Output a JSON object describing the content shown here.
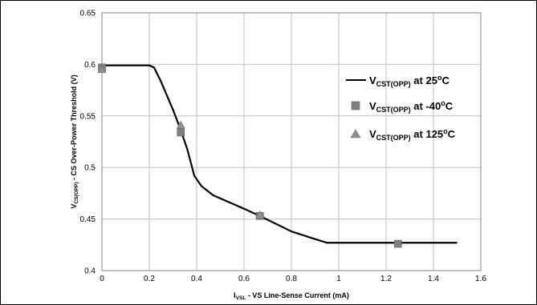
{
  "chart_data": {
    "type": "line",
    "x_axis": {
      "label_main": "I",
      "label_sub": "VSL",
      "label_rest": " - VS Line-Sense Current (mA)",
      "min": 0,
      "max": 1.6,
      "ticks": [
        "0",
        "0.2",
        "0.4",
        "0.6",
        "0.8",
        "1",
        "1.2",
        "1.4",
        "1.6"
      ]
    },
    "y_axis": {
      "label_main": "V",
      "label_sub": "CS(OPP)",
      "label_rest": " - CS Over-Power Threshold (V)",
      "min": 0.4,
      "max": 0.65,
      "ticks": [
        "0.4",
        "0.45",
        "0.5",
        "0.55",
        "0.6",
        "0.65"
      ]
    },
    "grid": true,
    "legend_position": "right",
    "series": [
      {
        "name_main": "V",
        "name_sub": "CST(OPP)",
        "name_rest": " at 25",
        "name_sup": "o",
        "name_end": "C",
        "marker": "line",
        "color": "#000000",
        "x": [
          0,
          0.1,
          0.2,
          0.22,
          0.25,
          0.3,
          0.33,
          0.36,
          0.39,
          0.42,
          0.47,
          0.55,
          0.6,
          0.667,
          0.72,
          0.8,
          0.88,
          0.95,
          1.0,
          1.25,
          1.5
        ],
        "y": [
          0.599,
          0.599,
          0.599,
          0.597,
          0.583,
          0.556,
          0.538,
          0.518,
          0.492,
          0.482,
          0.473,
          0.465,
          0.46,
          0.453,
          0.447,
          0.438,
          0.432,
          0.427,
          0.427,
          0.427,
          0.427
        ]
      },
      {
        "name_main": "V",
        "name_sub": "CST(OPP)",
        "name_rest": " at -40",
        "name_sup": "o",
        "name_end": "C",
        "marker": "square",
        "color": "#808080",
        "x": [
          0,
          0.333,
          0.667,
          1.25
        ],
        "y": [
          0.597,
          0.534,
          0.453,
          0.426
        ]
      },
      {
        "name_main": "V",
        "name_sub": "CST(OPP)",
        "name_rest": " at 125",
        "name_sup": "o",
        "name_end": "C",
        "marker": "triangle",
        "color": "#909090",
        "x": [
          0,
          0.333,
          0.667
        ],
        "y": [
          0.595,
          0.541,
          0.454
        ]
      }
    ]
  }
}
